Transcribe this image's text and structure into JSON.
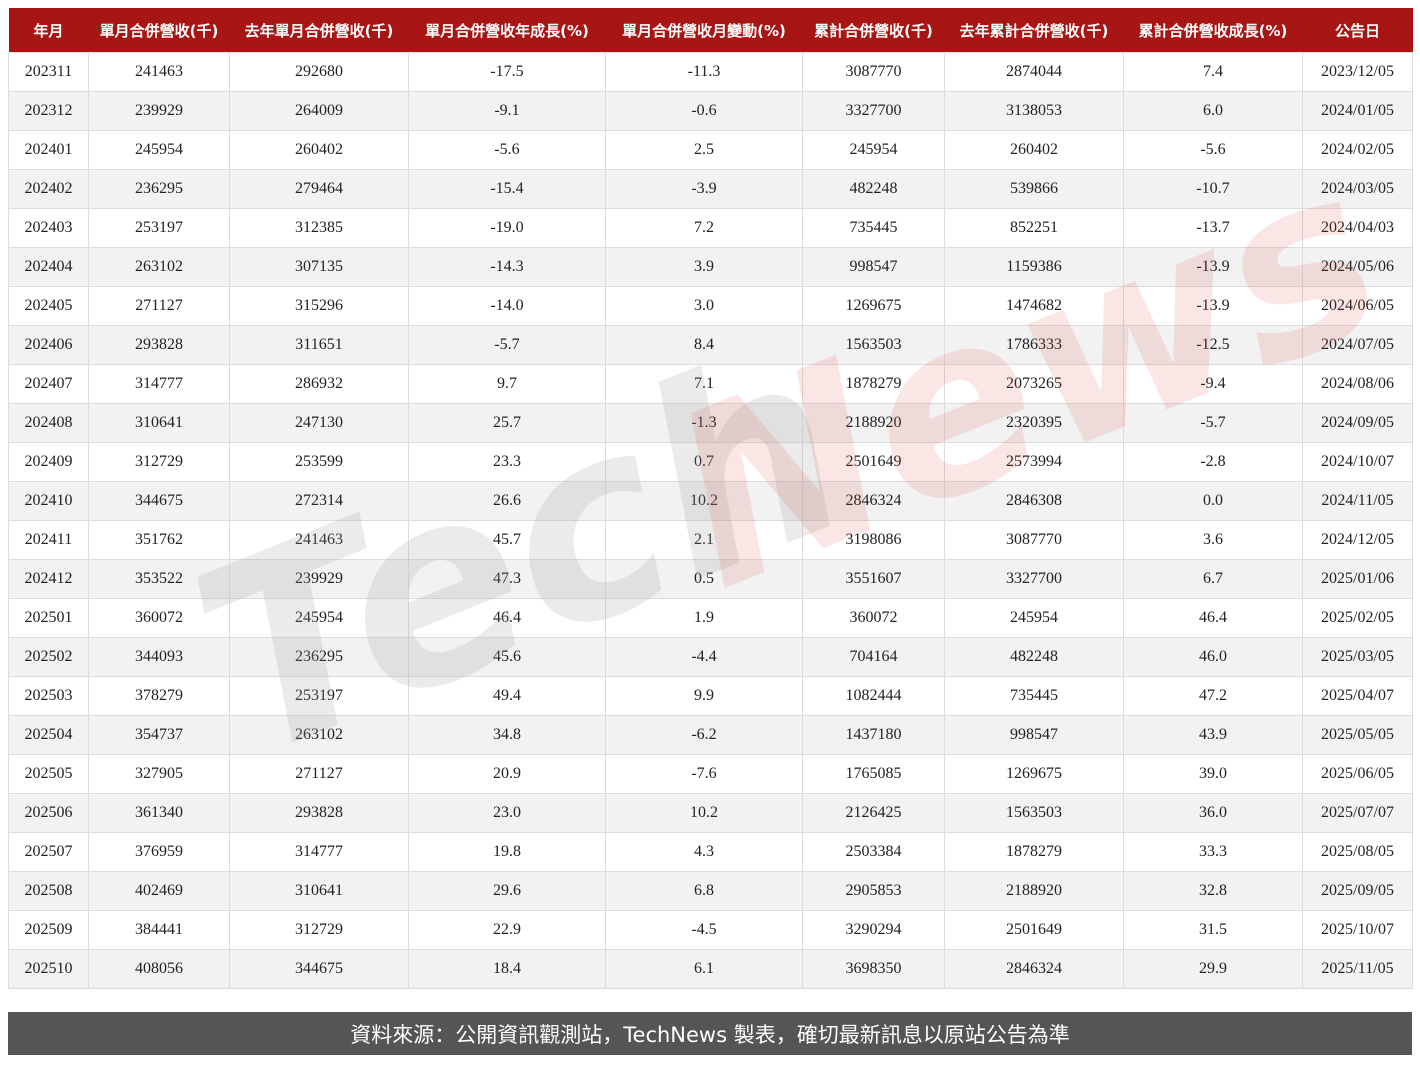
{
  "table": {
    "headers": [
      "年月",
      "單月合併營收(千)",
      "去年單月合併營收(千)",
      "單月合併營收年成長(%)",
      "單月合併營收月變動(%)",
      "累計合併營收(千)",
      "去年累計合併營收(千)",
      "累計合併營收成長(%)",
      "公告日"
    ],
    "rows": [
      [
        "202311",
        "241463",
        "292680",
        "-17.5",
        "-11.3",
        "3087770",
        "2874044",
        "7.4",
        "2023/12/05"
      ],
      [
        "202312",
        "239929",
        "264009",
        "-9.1",
        "-0.6",
        "3327700",
        "3138053",
        "6.0",
        "2024/01/05"
      ],
      [
        "202401",
        "245954",
        "260402",
        "-5.6",
        "2.5",
        "245954",
        "260402",
        "-5.6",
        "2024/02/05"
      ],
      [
        "202402",
        "236295",
        "279464",
        "-15.4",
        "-3.9",
        "482248",
        "539866",
        "-10.7",
        "2024/03/05"
      ],
      [
        "202403",
        "253197",
        "312385",
        "-19.0",
        "7.2",
        "735445",
        "852251",
        "-13.7",
        "2024/04/03"
      ],
      [
        "202404",
        "263102",
        "307135",
        "-14.3",
        "3.9",
        "998547",
        "1159386",
        "-13.9",
        "2024/05/06"
      ],
      [
        "202405",
        "271127",
        "315296",
        "-14.0",
        "3.0",
        "1269675",
        "1474682",
        "-13.9",
        "2024/06/05"
      ],
      [
        "202406",
        "293828",
        "311651",
        "-5.7",
        "8.4",
        "1563503",
        "1786333",
        "-12.5",
        "2024/07/05"
      ],
      [
        "202407",
        "314777",
        "286932",
        "9.7",
        "7.1",
        "1878279",
        "2073265",
        "-9.4",
        "2024/08/06"
      ],
      [
        "202408",
        "310641",
        "247130",
        "25.7",
        "-1.3",
        "2188920",
        "2320395",
        "-5.7",
        "2024/09/05"
      ],
      [
        "202409",
        "312729",
        "253599",
        "23.3",
        "0.7",
        "2501649",
        "2573994",
        "-2.8",
        "2024/10/07"
      ],
      [
        "202410",
        "344675",
        "272314",
        "26.6",
        "10.2",
        "2846324",
        "2846308",
        "0.0",
        "2024/11/05"
      ],
      [
        "202411",
        "351762",
        "241463",
        "45.7",
        "2.1",
        "3198086",
        "3087770",
        "3.6",
        "2024/12/05"
      ],
      [
        "202412",
        "353522",
        "239929",
        "47.3",
        "0.5",
        "3551607",
        "3327700",
        "6.7",
        "2025/01/06"
      ],
      [
        "202501",
        "360072",
        "245954",
        "46.4",
        "1.9",
        "360072",
        "245954",
        "46.4",
        "2025/02/05"
      ],
      [
        "202502",
        "344093",
        "236295",
        "45.6",
        "-4.4",
        "704164",
        "482248",
        "46.0",
        "2025/03/05"
      ],
      [
        "202503",
        "378279",
        "253197",
        "49.4",
        "9.9",
        "1082444",
        "735445",
        "47.2",
        "2025/04/07"
      ],
      [
        "202504",
        "354737",
        "263102",
        "34.8",
        "-6.2",
        "1437180",
        "998547",
        "43.9",
        "2025/05/05"
      ],
      [
        "202505",
        "327905",
        "271127",
        "20.9",
        "-7.6",
        "1765085",
        "1269675",
        "39.0",
        "2025/06/05"
      ],
      [
        "202506",
        "361340",
        "293828",
        "23.0",
        "10.2",
        "2126425",
        "1563503",
        "36.0",
        "2025/07/07"
      ],
      [
        "202507",
        "376959",
        "314777",
        "19.8",
        "4.3",
        "2503384",
        "1878279",
        "33.3",
        "2025/08/05"
      ],
      [
        "202508",
        "402469",
        "310641",
        "29.6",
        "6.8",
        "2905853",
        "2188920",
        "32.8",
        "2025/09/05"
      ],
      [
        "202509",
        "384441",
        "312729",
        "22.9",
        "-4.5",
        "3290294",
        "2501649",
        "31.5",
        "2025/10/07"
      ],
      [
        "202510",
        "408056",
        "344675",
        "18.4",
        "6.1",
        "3698350",
        "2846324",
        "29.9",
        "2025/11/05"
      ]
    ]
  },
  "watermark": {
    "part1": "Tech",
    "part2": "News"
  },
  "footer": {
    "text": "資料來源：公開資訊觀測站，TechNews 製表，確切最新訊息以原站公告為準"
  },
  "colors": {
    "header_bg": "#a81515",
    "footer_bg": "#555555",
    "alt_row": "#f2f2f2"
  }
}
